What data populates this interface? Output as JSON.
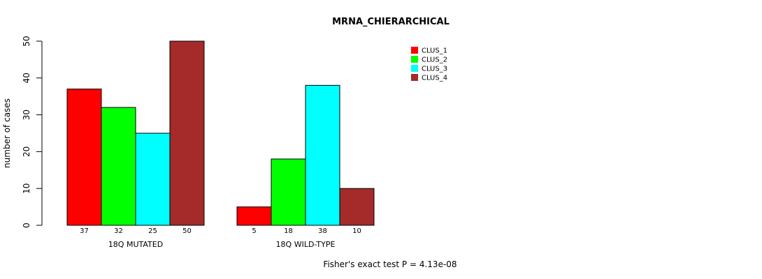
{
  "chart_data": {
    "type": "bar",
    "title": "MRNA_CHIERARCHICAL",
    "ylabel": "number of cases",
    "xlabel": "",
    "ylim": [
      0,
      50
    ],
    "yticks": [
      0,
      10,
      20,
      30,
      40,
      50
    ],
    "categories": [
      "18Q MUTATED",
      "18Q WILD-TYPE"
    ],
    "series": [
      {
        "name": "CLUS_1",
        "color": "#ff0000",
        "values": [
          37,
          5
        ]
      },
      {
        "name": "CLUS_2",
        "color": "#00ff00",
        "values": [
          32,
          18
        ]
      },
      {
        "name": "CLUS_3",
        "color": "#00ffff",
        "values": [
          25,
          38
        ]
      },
      {
        "name": "CLUS_4",
        "color": "#a52a2a",
        "values": [
          50,
          10
        ]
      }
    ],
    "legend_position": "top-right",
    "footer": "Fisher's exact test P = 4.13e-08"
  }
}
